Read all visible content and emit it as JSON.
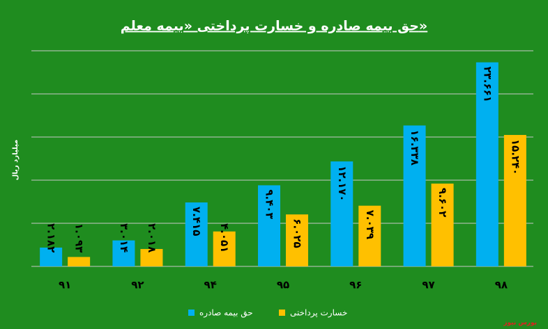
{
  "chart_data": {
    "type": "bar",
    "title": "حق بیمه صادره و خسارت پرداختی «بیمه معلم»",
    "y_label": "میلیارد ریال",
    "source": "بورس نیوز",
    "categories": [
      "۹۱",
      "۹۲",
      "۹۴",
      "۹۵",
      "۹۶",
      "۹۷",
      "۹۸"
    ],
    "series": [
      {
        "name": "حق بیمه صادره",
        "color": "#00b0f0",
        "values": [
          2182,
          3014,
          7415,
          9403,
          12170,
          16338,
          23661
        ],
        "value_labels": [
          "۲.۱۸۲",
          "۳.۰۱۴",
          "۷.۴۱۵",
          "۹.۴۰۳",
          "۱۲.۱۷۰",
          "۱۶.۳۳۸",
          "۲۳.۶۶۱"
        ]
      },
      {
        "name": "خسارت پرداختی",
        "color": "#ffc000",
        "values": [
          1093,
          2018,
          4051,
          6025,
          7039,
          9602,
          15240
        ],
        "value_labels": [
          "۱.۰۹۳",
          "۲.۰۱۸",
          "۴.۰۵۱",
          "۶.۰۲۵",
          "۷.۰۳۹",
          "۹.۶۰۲",
          "۱۵.۲۴۰"
        ]
      }
    ],
    "ylim": [
      0,
      25000
    ],
    "yticks": [
      0,
      5000,
      10000,
      15000,
      20000,
      25000
    ],
    "grid": true,
    "background": "#1f8c1f"
  }
}
